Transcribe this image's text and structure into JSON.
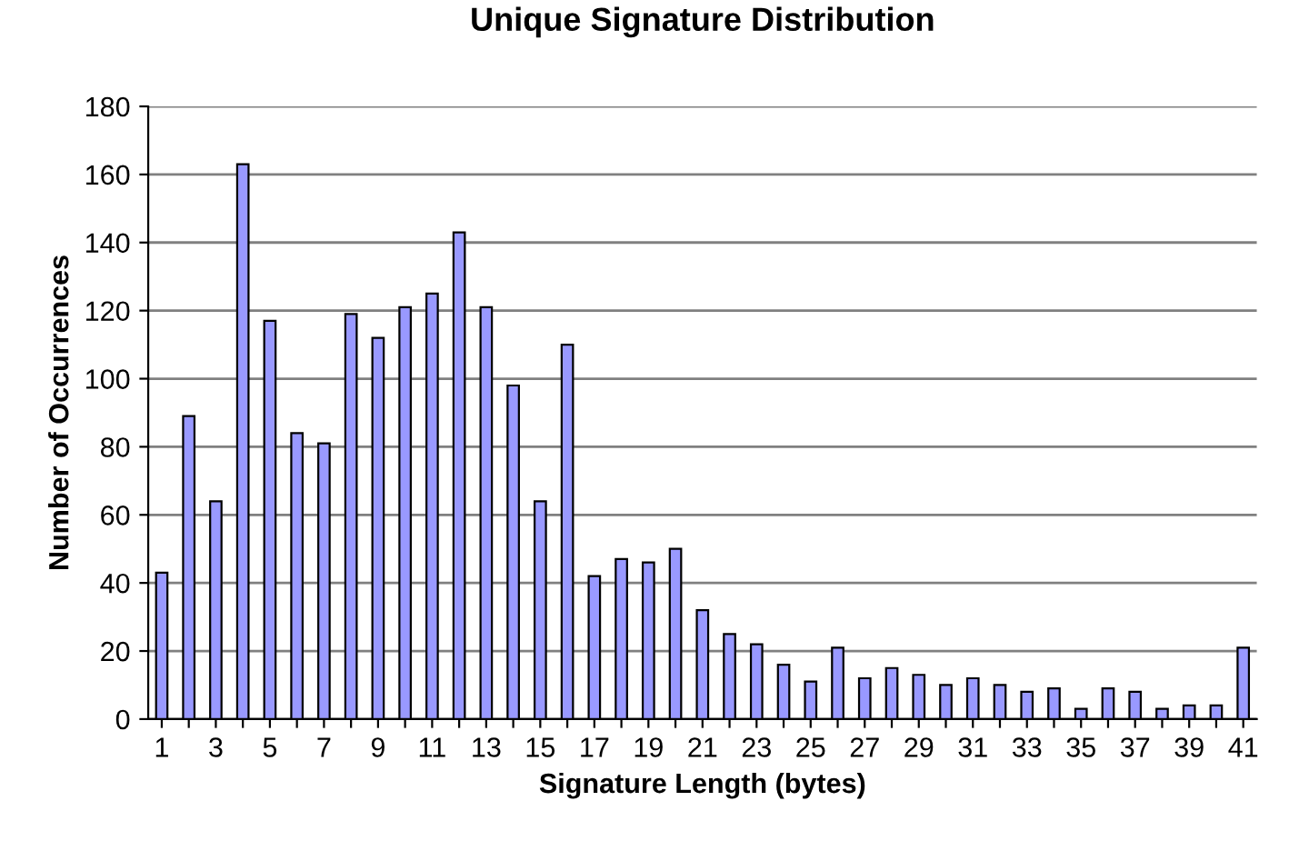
{
  "chart_data": {
    "type": "bar",
    "title": "Unique Signature Distribution",
    "xlabel": "Signature Length (bytes)",
    "ylabel": "Number of Occurrences",
    "categories": [
      "1",
      null,
      "3",
      null,
      "5",
      null,
      "7",
      null,
      "9",
      null,
      "11",
      null,
      "13",
      null,
      "15",
      null,
      "17",
      null,
      "19",
      null,
      "21",
      null,
      "23",
      null,
      "25",
      null,
      "27",
      null,
      "29",
      null,
      "31",
      null,
      "33",
      null,
      "35",
      null,
      "37",
      null,
      "39",
      null,
      "41"
    ],
    "values": [
      43,
      89,
      64,
      163,
      117,
      84,
      81,
      119,
      112,
      121,
      125,
      143,
      121,
      98,
      64,
      110,
      42,
      47,
      46,
      50,
      32,
      25,
      22,
      16,
      11,
      21,
      12,
      15,
      13,
      10,
      12,
      10,
      8,
      9,
      3,
      9,
      8,
      3,
      4,
      4,
      21
    ],
    "color": "#9999ff",
    "ylim": [
      0,
      180
    ],
    "yticks": [
      0,
      20,
      40,
      60,
      80,
      100,
      120,
      140,
      160,
      180
    ],
    "grid": "y",
    "legend": false
  }
}
